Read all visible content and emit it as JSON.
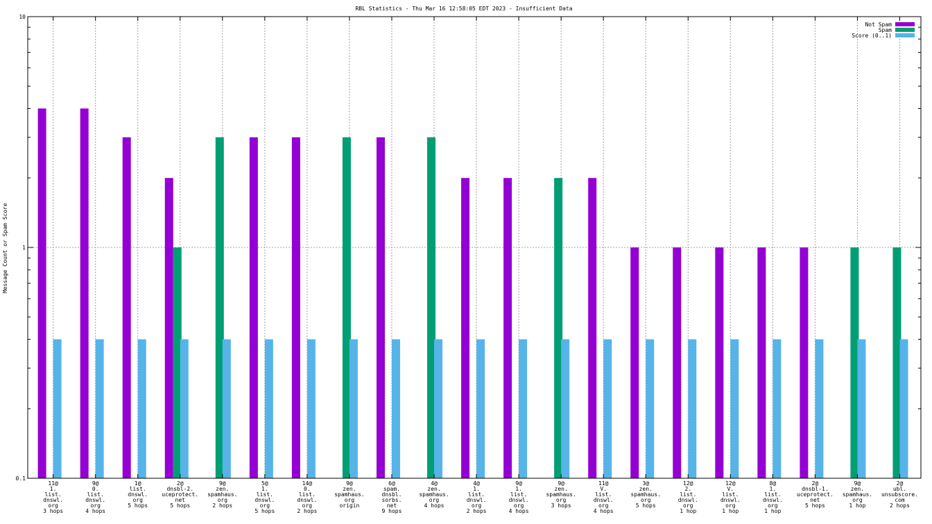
{
  "chart_data": {
    "type": "bar",
    "title": "RBL Statistics - Thu Mar 16 12:58:05 EDT 2023 - Insufficient Data",
    "ylabel": "Message Count or Spam Score",
    "xlabel": "",
    "yscale": "log",
    "ylim": [
      0.1,
      10
    ],
    "ytick_labels": [
      "0.1",
      "1",
      "10"
    ],
    "grid": true,
    "legend_position": "top-right",
    "categories": [
      [
        "11@",
        "1.",
        "list.",
        "dnswl.",
        "org",
        "3 hops"
      ],
      [
        "9@",
        "0.",
        "list.",
        "dnswl.",
        "org",
        "4 hops"
      ],
      [
        "1@",
        "list.",
        "dnswl.",
        "org",
        "5 hops"
      ],
      [
        "2@",
        "dnsbl-2.",
        "uceprotect.",
        "net",
        "5 hops"
      ],
      [
        "9@",
        "zen.",
        "spamhaus.",
        "org",
        "2 hops"
      ],
      [
        "5@",
        "1.",
        "list.",
        "dnswl.",
        "org",
        "5 hops"
      ],
      [
        "14@",
        "0.",
        "list.",
        "dnswl.",
        "org",
        "2 hops"
      ],
      [
        "9@",
        "zen.",
        "spamhaus.",
        "org",
        "origin"
      ],
      [
        "6@",
        "spam.",
        "dnsbl.",
        "sorbs.",
        "net",
        "9 hops"
      ],
      [
        "4@",
        "zen.",
        "spamhaus.",
        "org",
        "4 hops"
      ],
      [
        "4@",
        "1.",
        "list.",
        "dnswl.",
        "org",
        "2 hops"
      ],
      [
        "9@",
        "1.",
        "list.",
        "dnswl.",
        "org",
        "4 hops"
      ],
      [
        "9@",
        "zen.",
        "spamhaus.",
        "org",
        "3 hops"
      ],
      [
        "11@",
        "V.",
        "list.",
        "dnswl.",
        "org",
        "4 hops"
      ],
      [
        "3@",
        "zen.",
        "spamhaus.",
        "org",
        "5 hops"
      ],
      [
        "12@",
        "2.",
        "list.",
        "dnswl.",
        "org",
        "1 hop"
      ],
      [
        "12@",
        "V.",
        "list.",
        "dnswl.",
        "org",
        "1 hop"
      ],
      [
        "8@",
        "1.",
        "list.",
        "dnswl.",
        "org",
        "1 hop"
      ],
      [
        "2@",
        "dnsbl-1.",
        "uceprotect.",
        "net",
        "5 hops"
      ],
      [
        "9@",
        "zen.",
        "spamhaus.",
        "org",
        "1 hop"
      ],
      [
        "2@",
        "ubl.",
        "unsubscore.",
        "com",
        "2 hops"
      ]
    ],
    "series": [
      {
        "name": "Not Spam",
        "color": "#9400d3",
        "values": [
          4,
          4,
          3,
          2,
          0,
          3,
          3,
          0,
          3,
          0,
          2,
          2,
          0,
          2,
          1,
          1,
          1,
          1,
          1,
          0,
          0
        ]
      },
      {
        "name": "Spam",
        "color": "#009e73",
        "values": [
          0,
          0,
          0,
          1,
          3,
          0,
          0,
          3,
          0,
          3,
          0,
          0,
          2,
          0,
          0,
          0,
          0,
          0,
          0,
          1,
          1
        ]
      },
      {
        "name": "Score (0..1)",
        "color": "#56b4e9",
        "values": [
          0.4,
          0.4,
          0.4,
          0.4,
          0.4,
          0.4,
          0.4,
          0.4,
          0.4,
          0.4,
          0.4,
          0.4,
          0.4,
          0.4,
          0.4,
          0.4,
          0.4,
          0.4,
          0.4,
          0.4,
          0.4
        ]
      }
    ]
  }
}
